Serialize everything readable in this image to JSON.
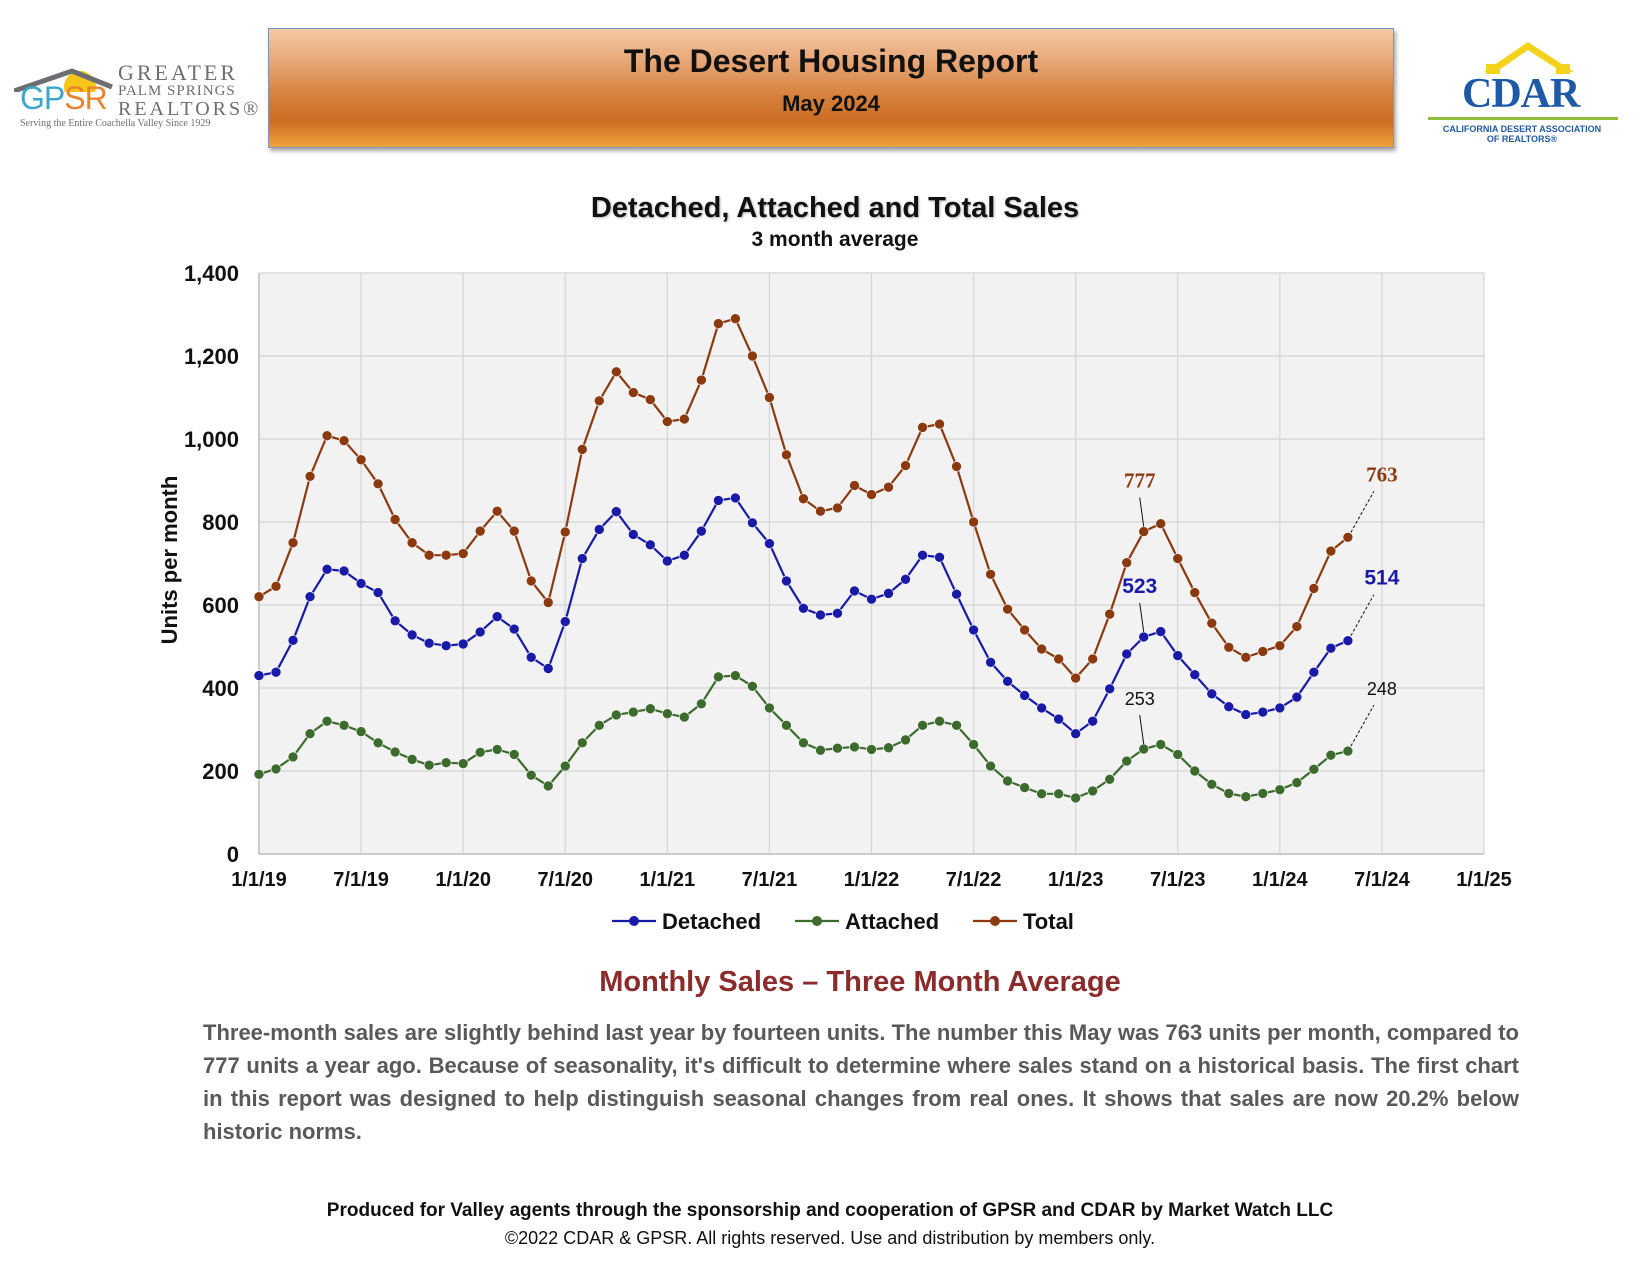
{
  "header": {
    "title": "The Desert Housing Report",
    "date": "May 2024"
  },
  "logos": {
    "gpsr": {
      "letters": "GPSR",
      "words": [
        "GREATER",
        "PALM SPRINGS",
        "REALTORS®"
      ],
      "tagline": "Serving the Entire Coachella Valley Since 1929"
    },
    "cdar": {
      "name": "CDAR",
      "sub_line1": "CALIFORNIA DESERT ASSOCIATION",
      "sub_line2": "OF REALTORS®"
    }
  },
  "colors": {
    "detached": "#1a1aa8",
    "attached": "#3d6b2e",
    "total": "#8b3a0f",
    "heading": "#8b2b2b"
  },
  "chart_data": {
    "type": "line",
    "title": "Detached, Attached and Total Sales",
    "subtitle": "3 month average",
    "ylabel": "Units per month",
    "xlabel": "",
    "ylim": [
      0,
      1400
    ],
    "yticks": [
      0,
      200,
      400,
      600,
      800,
      1000,
      1200,
      1400
    ],
    "ytick_labels": [
      "0",
      "200",
      "400",
      "600",
      "800",
      "1,000",
      "1,200",
      "1,400"
    ],
    "xtick_labels": [
      "1/1/19",
      "7/1/19",
      "1/1/20",
      "7/1/20",
      "1/1/21",
      "7/1/21",
      "1/1/22",
      "7/1/22",
      "1/1/23",
      "7/1/23",
      "1/1/24",
      "7/1/24",
      "1/1/25"
    ],
    "x_start": "1/1/19",
    "x_end": "1/1/25",
    "x_interval": "monthly",
    "grid": true,
    "legend": "bottom",
    "series": [
      {
        "name": "Detached",
        "values": [
          430,
          438,
          515,
          620,
          686,
          682,
          652,
          630,
          562,
          528,
          508,
          502,
          506,
          535,
          572,
          542,
          474,
          447,
          560,
          712,
          782,
          825,
          770,
          745,
          706,
          720,
          778,
          852,
          858,
          798,
          748,
          658,
          592,
          576,
          580,
          634,
          614,
          628,
          662,
          720,
          715,
          626,
          540,
          462,
          416,
          382,
          352,
          325,
          290,
          320,
          398,
          482,
          523,
          536,
          478,
          432,
          386,
          355,
          336,
          342,
          352,
          378,
          438,
          496,
          514
        ]
      },
      {
        "name": "Attached",
        "values": [
          192,
          205,
          234,
          290,
          320,
          310,
          295,
          268,
          246,
          228,
          214,
          220,
          218,
          245,
          252,
          240,
          190,
          164,
          212,
          268,
          310,
          335,
          342,
          350,
          338,
          330,
          362,
          427,
          430,
          404,
          352,
          310,
          268,
          250,
          255,
          258,
          252,
          256,
          275,
          310,
          320,
          310,
          264,
          212,
          176,
          160,
          145,
          145,
          135,
          152,
          180,
          224,
          253,
          264,
          240,
          200,
          168,
          146,
          138,
          146,
          155,
          172,
          204,
          238,
          248
        ]
      },
      {
        "name": "Total",
        "values": [
          620,
          645,
          750,
          910,
          1008,
          996,
          950,
          892,
          806,
          750,
          720,
          720,
          724,
          778,
          826,
          778,
          658,
          606,
          776,
          975,
          1092,
          1162,
          1112,
          1095,
          1042,
          1048,
          1142,
          1278,
          1290,
          1200,
          1100,
          962,
          856,
          826,
          834,
          888,
          866,
          884,
          936,
          1028,
          1036,
          934,
          800,
          674,
          590,
          540,
          494,
          470,
          424,
          470,
          578,
          702,
          777,
          796,
          712,
          630,
          556,
          498,
          474,
          488,
          502,
          548,
          640,
          730,
          763
        ]
      }
    ],
    "annotations": [
      {
        "series": "Total",
        "label": "777",
        "x": "5/1/23",
        "value": 777
      },
      {
        "series": "Total",
        "label": "763",
        "x": "5/1/24",
        "value": 763
      },
      {
        "series": "Detached",
        "label": "523",
        "x": "5/1/23",
        "value": 523
      },
      {
        "series": "Detached",
        "label": "514",
        "x": "5/1/24",
        "value": 514
      },
      {
        "series": "Attached",
        "label": "253",
        "x": "5/1/23",
        "value": 253
      },
      {
        "series": "Attached",
        "label": "248",
        "x": "5/1/24",
        "value": 248
      }
    ]
  },
  "section": {
    "heading": "Monthly Sales – Three Month Average",
    "paragraph": "Three-month sales are slightly behind last year by fourteen units. The number this May was 763 units per month, compared to 777 units a year ago. Because of seasonality, it's difficult to determine where sales stand on a historical basis. The first chart in this report was designed to help distinguish seasonal changes from real ones. It shows that sales are now 20.2% below historic norms."
  },
  "footer": {
    "line1": "Produced for Valley agents through the sponsorship and cooperation of GPSR and CDAR by Market Watch LLC",
    "line2": "©2022 CDAR & GPSR.  All rights reserved.  Use and distribution by members only."
  }
}
